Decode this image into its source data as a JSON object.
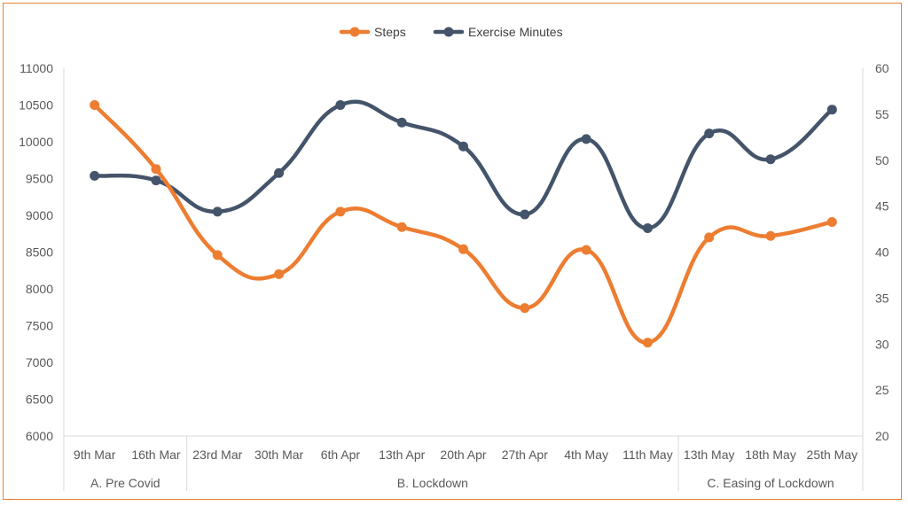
{
  "chart_data": {
    "type": "line",
    "categories": [
      "9th Mar",
      "16th Mar",
      "23rd Mar",
      "30th Mar",
      "6th Apr",
      "13th Apr",
      "20th Apr",
      "27th Apr",
      "4th May",
      "11th May",
      "13th May",
      "18th May",
      "25th May"
    ],
    "groups": [
      {
        "label": "A. Pre Covid",
        "count": 2
      },
      {
        "label": "B. Lockdown",
        "count": 8
      },
      {
        "label": "C. Easing of Lockdown",
        "count": 3
      }
    ],
    "series": [
      {
        "name": "Steps",
        "axis": "left",
        "color": "#ED7D31",
        "values": [
          10500,
          9630,
          8460,
          8200,
          9050,
          8840,
          8540,
          7740,
          8530,
          7270,
          8700,
          8720,
          8910
        ]
      },
      {
        "name": "Exercise Minutes",
        "axis": "right",
        "color": "#44546A",
        "values": [
          48.3,
          47.8,
          44.4,
          48.6,
          56.0,
          54.1,
          51.5,
          44.1,
          52.3,
          42.6,
          52.9,
          50.1,
          55.5
        ]
      }
    ],
    "y_left": {
      "min": 6000,
      "max": 11000,
      "step": 500
    },
    "y_right": {
      "min": 20,
      "max": 60,
      "step": 5
    },
    "legend_position": "top",
    "grid": false,
    "smooth": true,
    "frame_color": "#ED7D31",
    "axis_color": "#D9D9D9",
    "text_color": "#595959"
  }
}
